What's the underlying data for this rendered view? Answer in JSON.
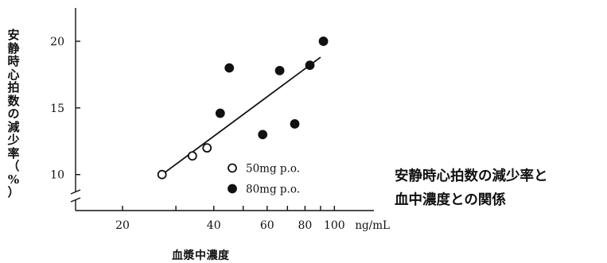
{
  "chart_data": {
    "type": "scatter",
    "title": "",
    "ylabel": "安静時心拍数の減少率（%）",
    "xlabel": "血漿中濃度",
    "x_unit": "ng/mL",
    "x_scale": "log",
    "xlim": [
      14,
      135
    ],
    "ylim": [
      7.3,
      22.5
    ],
    "axis_break": "y",
    "x_ticks": [
      20,
      40,
      60,
      80,
      100
    ],
    "y_ticks": [
      10,
      15,
      20
    ],
    "series": [
      {
        "name": "50mg p.o.",
        "marker": "open-circle",
        "color": "#111111",
        "points": [
          [
            27,
            10.0
          ],
          [
            34,
            11.4
          ],
          [
            38,
            12.0
          ]
        ]
      },
      {
        "name": "80mg p.o.",
        "marker": "filled-circle",
        "color": "#111111",
        "points": [
          [
            42,
            14.6
          ],
          [
            45,
            18.0
          ],
          [
            58,
            13.0
          ],
          [
            66,
            17.8
          ],
          [
            74,
            13.8
          ],
          [
            83,
            18.2
          ],
          [
            92,
            20.0
          ]
        ]
      }
    ],
    "regression_line": {
      "x": [
        27,
        90
      ],
      "y": [
        10.0,
        18.8
      ]
    },
    "legend_position": "lower-right",
    "grid": false,
    "caption": [
      "安静時心拍数の減少率と",
      "血中濃度との関係"
    ]
  }
}
